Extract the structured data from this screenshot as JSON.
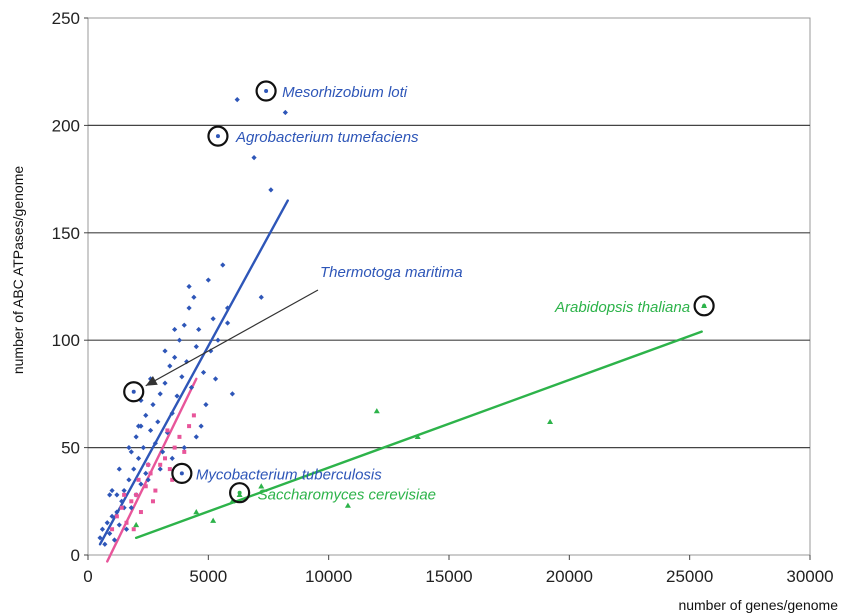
{
  "chart_data": {
    "type": "scatter",
    "xlabel": "number of genes/genome",
    "ylabel": "number of ABC ATPases/genome",
    "xlim": [
      0,
      30000
    ],
    "ylim": [
      0,
      250
    ],
    "xticks": [
      "0",
      "5000",
      "10000",
      "15000",
      "20000",
      "25000",
      "30000"
    ],
    "yticks": [
      "0",
      "50",
      "100",
      "150",
      "200",
      "250"
    ],
    "grid": "horizontal",
    "colors": {
      "bacteria": "#2e56b8",
      "archaea": "#e8559a",
      "eukaryotes": "#2db34a",
      "arrow": "#333333",
      "circle": "#111111"
    },
    "series": [
      {
        "color": "#2e56b8",
        "marker": "diamond",
        "points": [
          [
            500,
            8
          ],
          [
            600,
            12
          ],
          [
            700,
            5
          ],
          [
            800,
            15
          ],
          [
            900,
            10
          ],
          [
            1000,
            18
          ],
          [
            1100,
            7
          ],
          [
            1200,
            20
          ],
          [
            1300,
            14
          ],
          [
            1400,
            25
          ],
          [
            1500,
            30
          ],
          [
            1600,
            12
          ],
          [
            1700,
            35
          ],
          [
            1800,
            22
          ],
          [
            1900,
            40
          ],
          [
            2000,
            28
          ],
          [
            2100,
            45
          ],
          [
            2200,
            33
          ],
          [
            2300,
            50
          ],
          [
            2400,
            38
          ],
          [
            1000,
            30
          ],
          [
            1200,
            28
          ],
          [
            1500,
            22
          ],
          [
            1800,
            48
          ],
          [
            2000,
            55
          ],
          [
            2200,
            60
          ],
          [
            2400,
            65
          ],
          [
            2500,
            42
          ],
          [
            2600,
            58
          ],
          [
            2700,
            70
          ],
          [
            2800,
            52
          ],
          [
            2900,
            62
          ],
          [
            3000,
            75
          ],
          [
            3100,
            48
          ],
          [
            3200,
            80
          ],
          [
            3300,
            57
          ],
          [
            3400,
            88
          ],
          [
            3500,
            66
          ],
          [
            3600,
            92
          ],
          [
            3700,
            74
          ],
          [
            3800,
            100
          ],
          [
            3900,
            83
          ],
          [
            4000,
            107
          ],
          [
            4100,
            90
          ],
          [
            4200,
            115
          ],
          [
            4300,
            78
          ],
          [
            4400,
            120
          ],
          [
            4500,
            97
          ],
          [
            4600,
            105
          ],
          [
            4700,
            60
          ],
          [
            4800,
            85
          ],
          [
            4900,
            70
          ],
          [
            5000,
            128
          ],
          [
            5100,
            95
          ],
          [
            5200,
            110
          ],
          [
            5300,
            82
          ],
          [
            5400,
            100
          ],
          [
            5600,
            135
          ],
          [
            5800,
            108
          ],
          [
            6000,
            75
          ],
          [
            2500,
            35
          ],
          [
            3000,
            40
          ],
          [
            3500,
            45
          ],
          [
            4000,
            50
          ],
          [
            4500,
            55
          ],
          [
            2200,
            72
          ],
          [
            2600,
            82
          ],
          [
            3200,
            95
          ],
          [
            3600,
            105
          ],
          [
            4200,
            125
          ],
          [
            6200,
            212
          ],
          [
            6900,
            185
          ],
          [
            7600,
            170
          ],
          [
            8200,
            206
          ],
          [
            7200,
            120
          ],
          [
            5800,
            115
          ],
          [
            2100,
            60
          ],
          [
            1700,
            50
          ],
          [
            1300,
            40
          ],
          [
            900,
            28
          ]
        ]
      },
      {
        "color": "#e8559a",
        "marker": "square",
        "points": [
          [
            1000,
            12
          ],
          [
            1200,
            18
          ],
          [
            1400,
            22
          ],
          [
            1600,
            15
          ],
          [
            1800,
            25
          ],
          [
            2000,
            28
          ],
          [
            2200,
            20
          ],
          [
            2400,
            32
          ],
          [
            2600,
            38
          ],
          [
            2800,
            30
          ],
          [
            3000,
            42
          ],
          [
            3200,
            45
          ],
          [
            3400,
            40
          ],
          [
            3600,
            50
          ],
          [
            3800,
            55
          ],
          [
            4000,
            48
          ],
          [
            4200,
            60
          ],
          [
            4400,
            65
          ],
          [
            2500,
            42
          ],
          [
            2100,
            35
          ],
          [
            3300,
            58
          ],
          [
            1500,
            28
          ],
          [
            2700,
            25
          ],
          [
            3500,
            35
          ],
          [
            1900,
            12
          ]
        ]
      },
      {
        "color": "#2db34a",
        "marker": "triangle",
        "points": [
          [
            2000,
            14
          ],
          [
            4500,
            20
          ],
          [
            5200,
            16
          ],
          [
            6000,
            25
          ],
          [
            6300,
            28
          ],
          [
            7200,
            32
          ],
          [
            10800,
            23
          ],
          [
            12000,
            67
          ],
          [
            13700,
            55
          ],
          [
            19200,
            62
          ],
          [
            25600,
            116
          ]
        ]
      }
    ],
    "trendlines": [
      {
        "color": "#2e56b8",
        "from": [
          500,
          5
        ],
        "to": [
          8300,
          165
        ]
      },
      {
        "color": "#e8559a",
        "from": [
          800,
          -3
        ],
        "to": [
          4500,
          82
        ]
      },
      {
        "color": "#2db34a",
        "from": [
          2000,
          8
        ],
        "to": [
          25500,
          104
        ]
      }
    ],
    "annotations": [
      {
        "text": "Mesorhizobium loti",
        "x": 7400,
        "y": 216,
        "color": "#2e56b8"
      },
      {
        "text": "Agrobacterium tumefaciens",
        "x": 5400,
        "y": 195,
        "color": "#2e56b8"
      },
      {
        "text": "Thermotoga maritima",
        "x": 1900,
        "y": 76,
        "color": "#2e56b8"
      },
      {
        "text": "Arabidopsis thaliana",
        "x": 25600,
        "y": 116,
        "color": "#2db34a"
      },
      {
        "text": "Mycobacterium tuberculosis",
        "x": 3900,
        "y": 38,
        "color": "#2e56b8"
      },
      {
        "text": "Saccharomyces cerevisiae",
        "x": 6300,
        "y": 29,
        "color": "#2db34a"
      }
    ]
  }
}
